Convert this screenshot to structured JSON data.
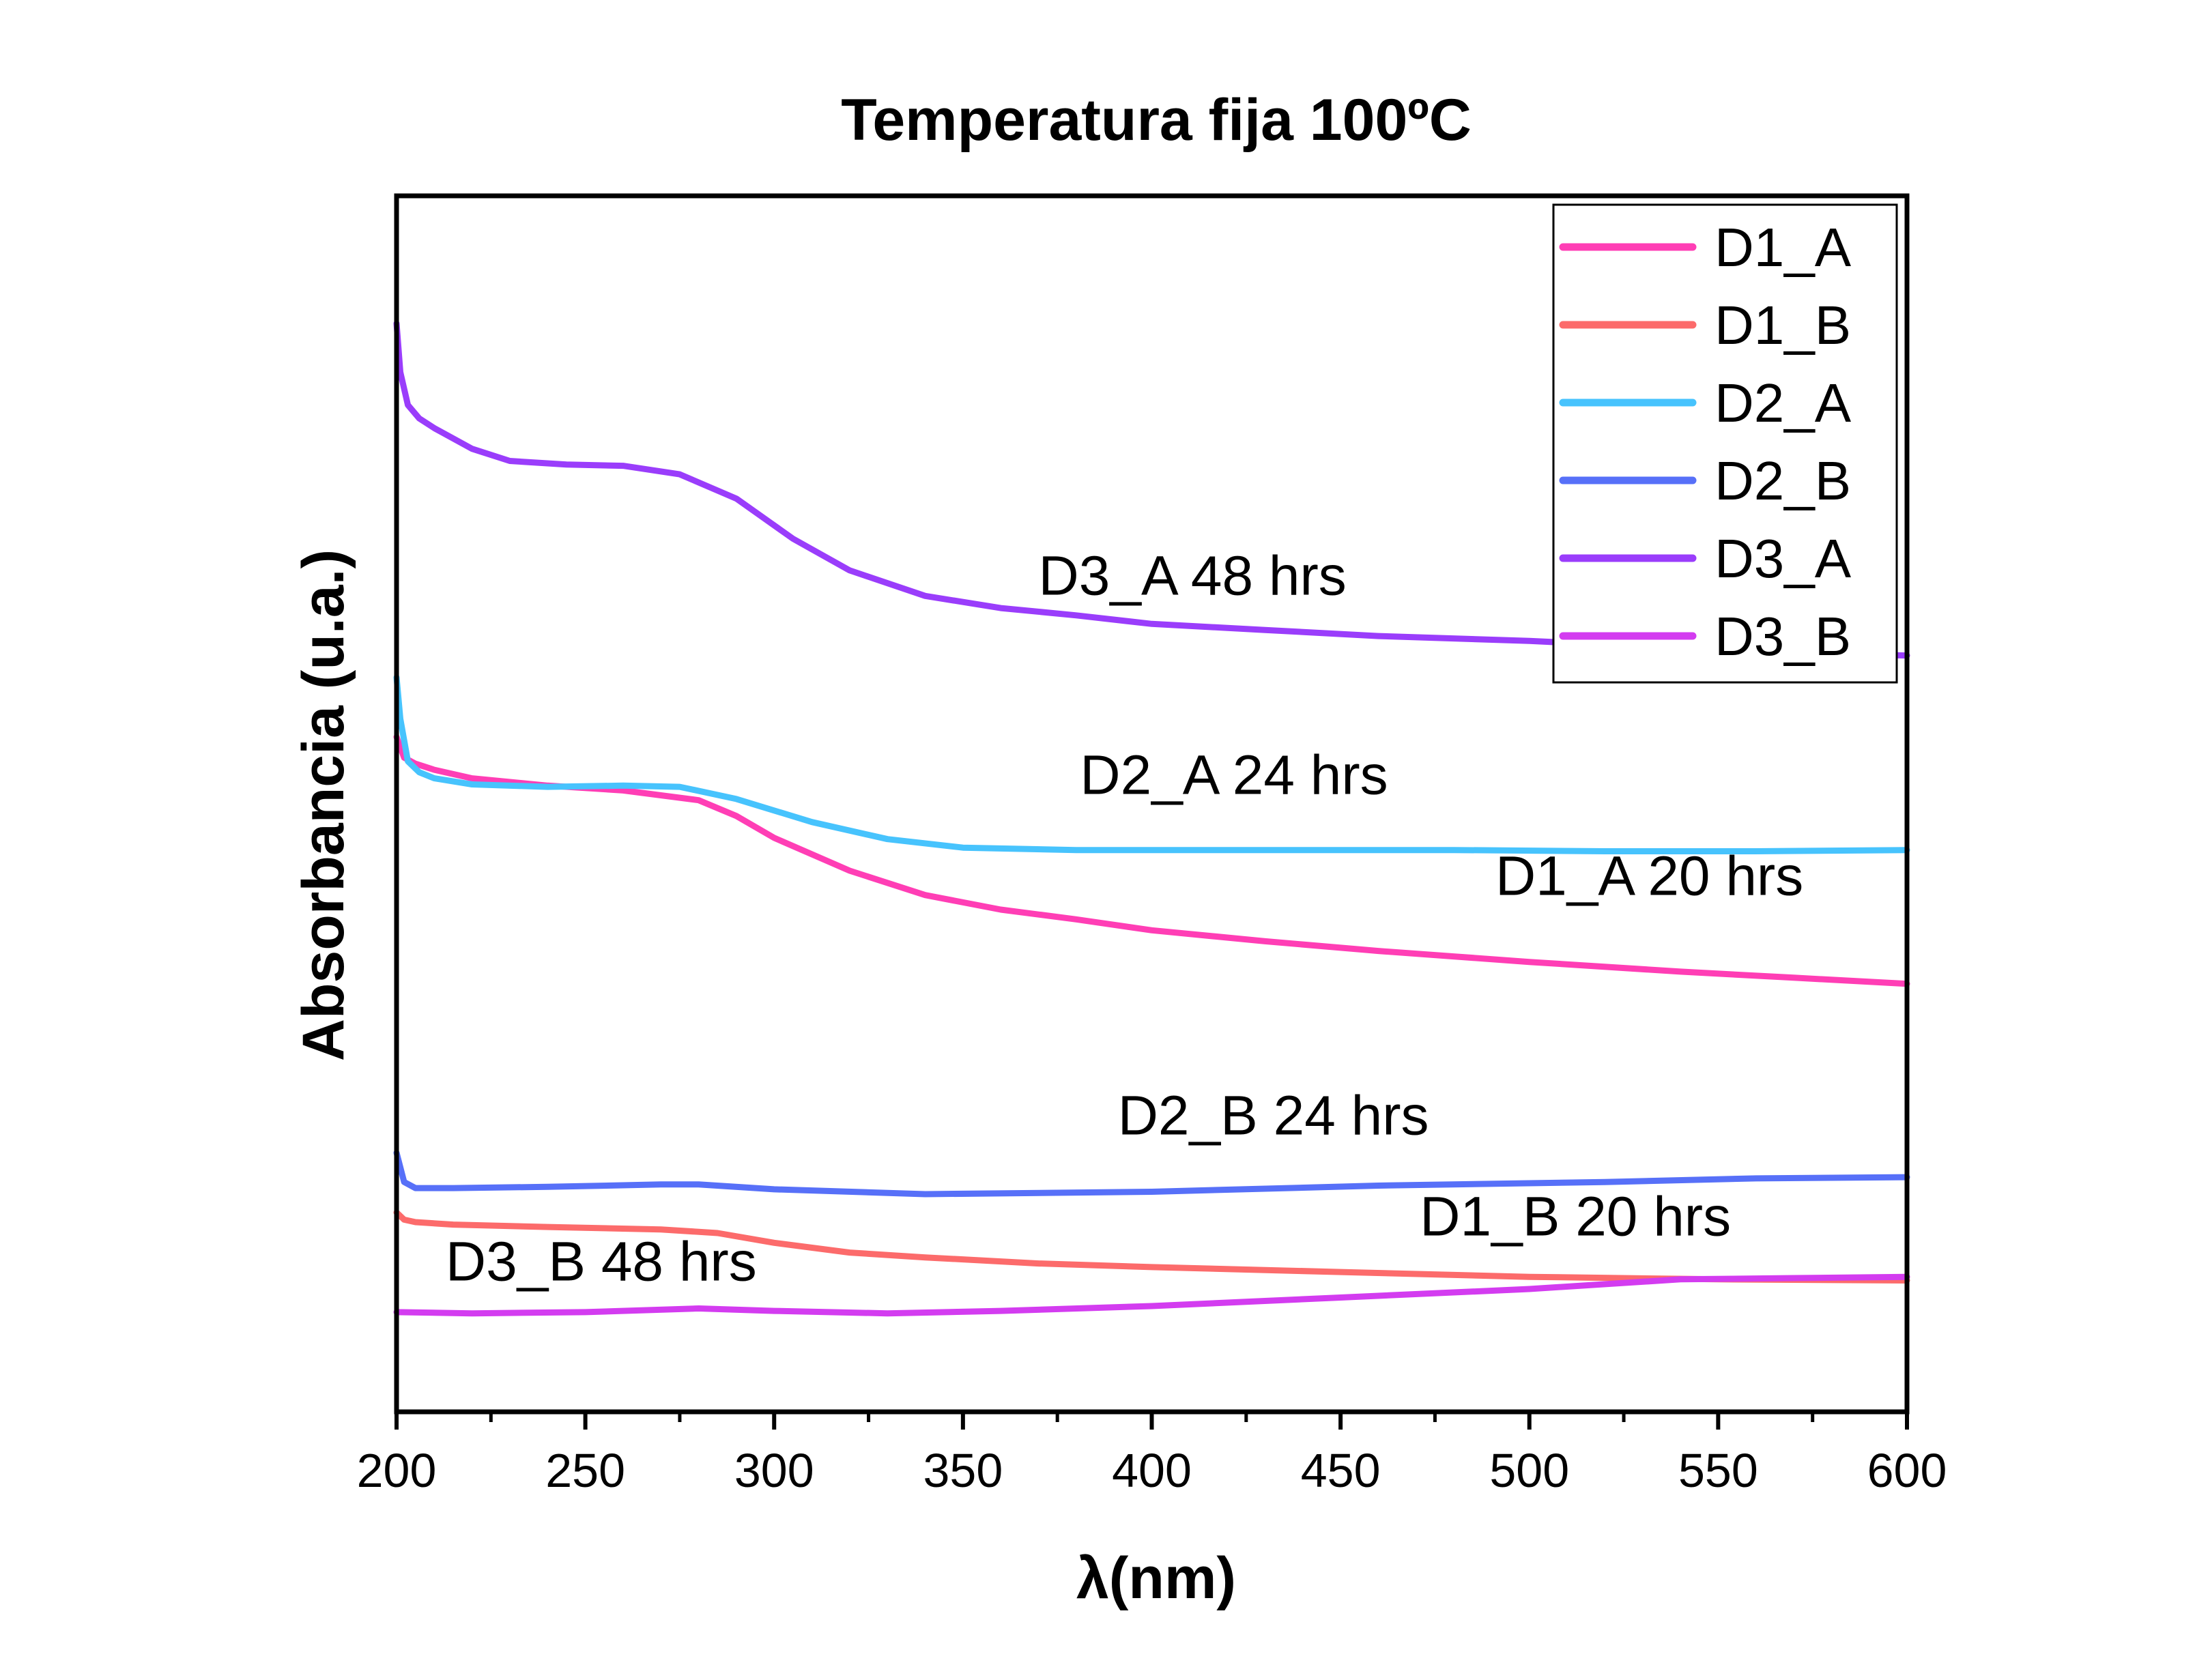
{
  "chart_data": {
    "type": "line",
    "title": "Temperatura fija 100ºC",
    "xlabel": "λ(nm)",
    "ylabel": "Absorbancia (u.a.)",
    "xlim": [
      200,
      600
    ],
    "ylim": [
      0,
      100
    ],
    "xticks": [
      "200",
      "250",
      "300",
      "350",
      "400",
      "450",
      "500",
      "550",
      "600"
    ],
    "yticks_shown": false,
    "legend_position": "top-right",
    "series": [
      {
        "name": "D1_A",
        "color": "#ff3eb5",
        "x": [
          200,
          202,
          205,
          210,
          220,
          240,
          260,
          280,
          290,
          300,
          320,
          340,
          360,
          380,
          400,
          430,
          460,
          500,
          540,
          570,
          600
        ],
        "y": [
          55.5,
          53.8,
          53.3,
          52.8,
          52.1,
          51.5,
          51.1,
          50.3,
          49.0,
          47.2,
          44.5,
          42.5,
          41.3,
          40.5,
          39.6,
          38.7,
          37.9,
          37.0,
          36.2,
          35.7,
          35.2
        ]
      },
      {
        "name": "D1_B",
        "color": "#fc6b6b",
        "x": [
          200,
          202,
          205,
          215,
          240,
          270,
          285,
          300,
          320,
          340,
          370,
          400,
          450,
          500,
          550,
          600
        ],
        "y": [
          16.4,
          15.8,
          15.6,
          15.4,
          15.2,
          15.0,
          14.7,
          13.9,
          13.1,
          12.7,
          12.2,
          11.9,
          11.5,
          11.1,
          10.9,
          10.8
        ]
      },
      {
        "name": "D2_A",
        "color": "#47c3fd",
        "x": [
          200,
          201,
          203,
          206,
          210,
          220,
          240,
          260,
          275,
          290,
          310,
          330,
          350,
          380,
          420,
          480,
          520,
          560,
          600
        ],
        "y": [
          60.4,
          57.0,
          53.5,
          52.6,
          52.1,
          51.6,
          51.4,
          51.5,
          51.4,
          50.4,
          48.5,
          47.1,
          46.4,
          46.2,
          46.2,
          46.2,
          46.1,
          46.1,
          46.2
        ]
      },
      {
        "name": "D2_B",
        "color": "#5770f8",
        "x": [
          200,
          202,
          205,
          215,
          240,
          270,
          280,
          300,
          340,
          400,
          460,
          520,
          560,
          600
        ],
        "y": [
          21.3,
          18.9,
          18.4,
          18.4,
          18.5,
          18.7,
          18.7,
          18.3,
          17.9,
          18.1,
          18.6,
          18.9,
          19.2,
          19.3
        ]
      },
      {
        "name": "D3_A",
        "color": "#9a3dfb",
        "x": [
          200,
          201,
          203,
          206,
          210,
          220,
          230,
          245,
          260,
          275,
          290,
          305,
          320,
          340,
          360,
          380,
          400,
          430,
          460,
          500,
          540,
          570,
          600
        ],
        "y": [
          89.5,
          85.5,
          82.8,
          81.7,
          80.9,
          79.2,
          78.2,
          77.9,
          77.8,
          77.1,
          75.1,
          71.8,
          69.2,
          67.1,
          66.1,
          65.5,
          64.8,
          64.3,
          63.8,
          63.4,
          62.8,
          62.4,
          62.2
        ]
      },
      {
        "name": "D3_B",
        "color": "#d33cf0",
        "x": [
          200,
          220,
          250,
          280,
          300,
          330,
          360,
          400,
          450,
          500,
          540,
          570,
          600
        ],
        "y": [
          8.2,
          8.1,
          8.2,
          8.5,
          8.3,
          8.1,
          8.3,
          8.7,
          9.4,
          10.1,
          10.9,
          11.0,
          11.1
        ]
      }
    ],
    "annotations": [
      {
        "text": "D3_A 48 hrs",
        "x": 370,
        "y": 67.2
      },
      {
        "text": "D2_A 24 hrs",
        "x": 381,
        "y": 50.8
      },
      {
        "text": "D1_A 20 hrs",
        "x": 491,
        "y": 42.5
      },
      {
        "text": "D2_B 24 hrs",
        "x": 391,
        "y": 22.8
      },
      {
        "text": "D1_B 20 hrs",
        "x": 471,
        "y": 14.5
      },
      {
        "text": "D3_B 48 hrs",
        "x": 213,
        "y": 10.8
      }
    ]
  }
}
